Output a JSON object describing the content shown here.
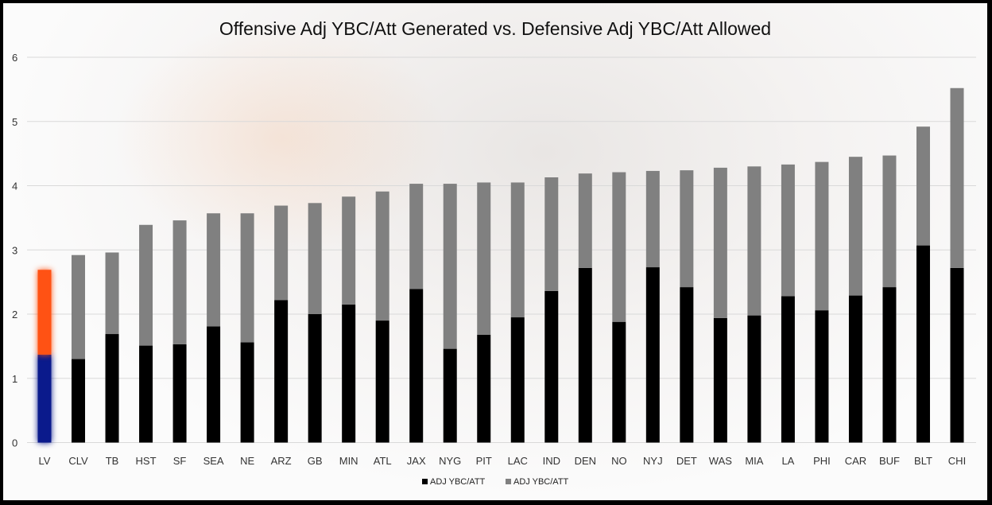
{
  "chart_data": {
    "type": "bar",
    "stacked": true,
    "title": "Offensive Adj YBC/Att Generated vs. Defensive Adj YBC/Att Allowed",
    "xlabel": "",
    "ylabel": "",
    "ylim": [
      0,
      6
    ],
    "yticks": [
      0,
      1,
      2,
      3,
      4,
      5,
      6
    ],
    "grid": true,
    "legend_position": "bottom",
    "categories": [
      "LV",
      "CLV",
      "TB",
      "HST",
      "SF",
      "SEA",
      "NE",
      "ARZ",
      "GB",
      "MIN",
      "ATL",
      "JAX",
      "NYG",
      "PIT",
      "LAC",
      "IND",
      "DEN",
      "NO",
      "NYJ",
      "DET",
      "WAS",
      "MIA",
      "LA",
      "PHI",
      "CAR",
      "BUF",
      "BLT",
      "CHI"
    ],
    "series": [
      {
        "name": "ADJ YBC/ATT",
        "color": "#000000",
        "highlight_color": "#0a1a8c",
        "values": [
          1.37,
          1.3,
          1.69,
          1.51,
          1.53,
          1.81,
          1.56,
          2.22,
          2.0,
          2.15,
          1.9,
          2.39,
          1.46,
          1.68,
          1.95,
          2.36,
          2.72,
          1.88,
          2.73,
          2.42,
          1.94,
          1.98,
          2.28,
          2.06,
          2.29,
          2.42,
          3.07,
          2.72
        ]
      },
      {
        "name": "ADJ YBC/ATT",
        "color": "#808080",
        "highlight_color": "#ff5214",
        "values": [
          1.32,
          1.62,
          1.27,
          1.88,
          1.93,
          1.76,
          2.01,
          1.47,
          1.73,
          1.68,
          2.01,
          1.64,
          2.57,
          2.37,
          2.1,
          1.77,
          1.47,
          2.33,
          1.5,
          1.82,
          2.34,
          2.32,
          2.05,
          2.31,
          2.16,
          2.05,
          1.85,
          2.8
        ]
      }
    ],
    "highlighted_category": "LV"
  }
}
